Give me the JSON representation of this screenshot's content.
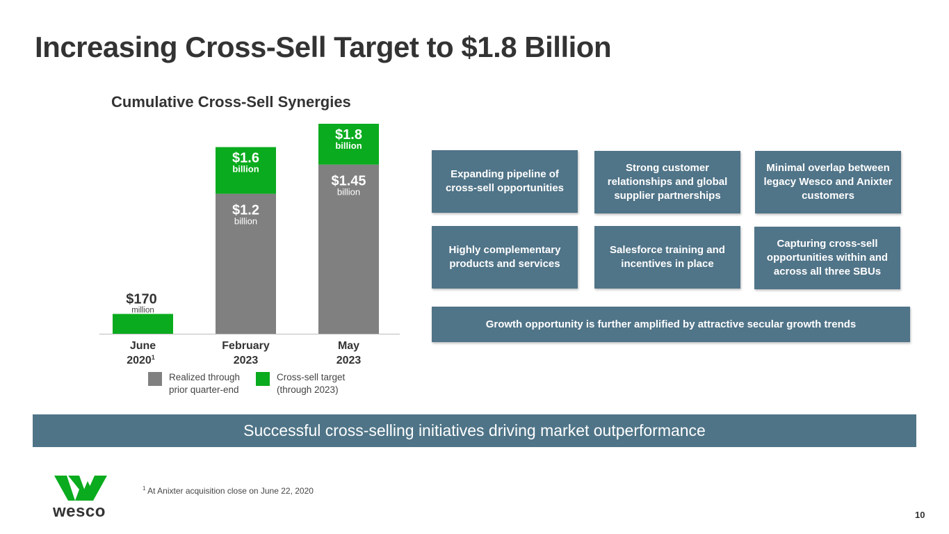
{
  "slide": {
    "title": "Increasing Cross-Sell Target to $1.8 Billion",
    "page_number": "10",
    "banner": "Successful cross-selling initiatives driving market outperformance",
    "footnote_mark": "1",
    "footnote_text": " At Anixter acquisition close on June 22, 2020",
    "logo_text": "wesco"
  },
  "legend": {
    "realized": "Realized through prior quarter-end",
    "target": "Cross-sell target (through 2023)"
  },
  "boxes": [
    "Expanding pipeline of cross-sell opportunities",
    "Strong customer relationships and global supplier partnerships",
    "Minimal overlap between legacy Wesco and Anixter customers",
    "Highly complementary products and services",
    "Salesforce training and incentives in place",
    "Capturing cross-sell opportunities within and across all three SBUs"
  ],
  "wide_box": "Growth opportunity is further amplified by attractive secular growth trends",
  "colors": {
    "realized": "#808080",
    "target": "#0aab1e",
    "box": "#507488",
    "banner": "#4f7487"
  },
  "chart_data": {
    "type": "bar",
    "stacked": true,
    "title": "Cumulative Cross-Sell Synergies",
    "unit": "billion USD",
    "categories": [
      {
        "line1": "June",
        "line2": "2020",
        "sup": "1"
      },
      {
        "line1": "February",
        "line2": "2023",
        "sup": ""
      },
      {
        "line1": "May",
        "line2": "2023",
        "sup": ""
      }
    ],
    "series": [
      {
        "name": "Realized through prior quarter-end",
        "values": [
          0,
          1.2,
          1.45
        ]
      },
      {
        "name": "Cross-sell target (through 2023)",
        "values": [
          0.17,
          0.4,
          0.35
        ]
      }
    ],
    "labels": [
      {
        "realized_value": "",
        "realized_unit": "",
        "total_value": "$170",
        "total_unit": "million"
      },
      {
        "realized_value": "$1.2",
        "realized_unit": "billion",
        "total_value": "$1.6",
        "total_unit": "billion"
      },
      {
        "realized_value": "$1.45",
        "realized_unit": "billion",
        "total_value": "$1.8",
        "total_unit": "billion"
      }
    ],
    "ylim": [
      0,
      1.8
    ]
  }
}
